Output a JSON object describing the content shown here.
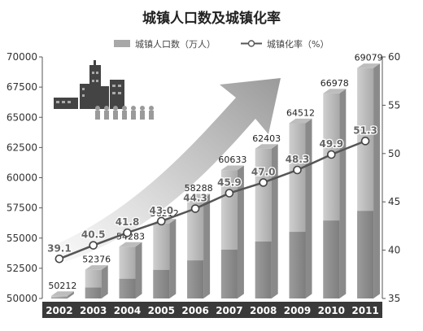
{
  "chart_data": {
    "type": "bar",
    "title": "城镇人口数及城镇化率",
    "categories": [
      "2002",
      "2003",
      "2004",
      "2005",
      "2006",
      "2007",
      "2008",
      "2009",
      "2010",
      "2011"
    ],
    "series": [
      {
        "name": "城镇人口数（万人）",
        "type": "bar",
        "axis": "left",
        "values": [
          50212,
          52376,
          54283,
          56212,
          58288,
          60633,
          62403,
          64512,
          66978,
          69079
        ]
      },
      {
        "name": "城镇化率（%）",
        "type": "line",
        "axis": "right",
        "values": [
          39.1,
          40.5,
          41.8,
          43.0,
          44.3,
          45.9,
          47.0,
          48.3,
          49.9,
          51.3
        ]
      }
    ],
    "bar_labels": [
      "50212",
      "52376",
      "54283",
      "56212",
      "58288",
      "60633",
      "62403",
      "64512",
      "66978",
      "69079"
    ],
    "line_labels": [
      "39.1",
      "40.5",
      "41.8",
      "43.0",
      "44.3",
      "45.9",
      "47.0",
      "48.3",
      "49.9",
      "51.3"
    ],
    "y_left": {
      "min": 50000,
      "max": 70000,
      "ticks": [
        "50000",
        "52500",
        "55000",
        "57500",
        "60000",
        "62500",
        "65000",
        "67500",
        "70000"
      ]
    },
    "y_right": {
      "min": 35,
      "max": 60,
      "ticks": [
        "35",
        "40",
        "45",
        "50",
        "55",
        "60"
      ]
    },
    "legend_position": "top-center",
    "grid": false
  }
}
